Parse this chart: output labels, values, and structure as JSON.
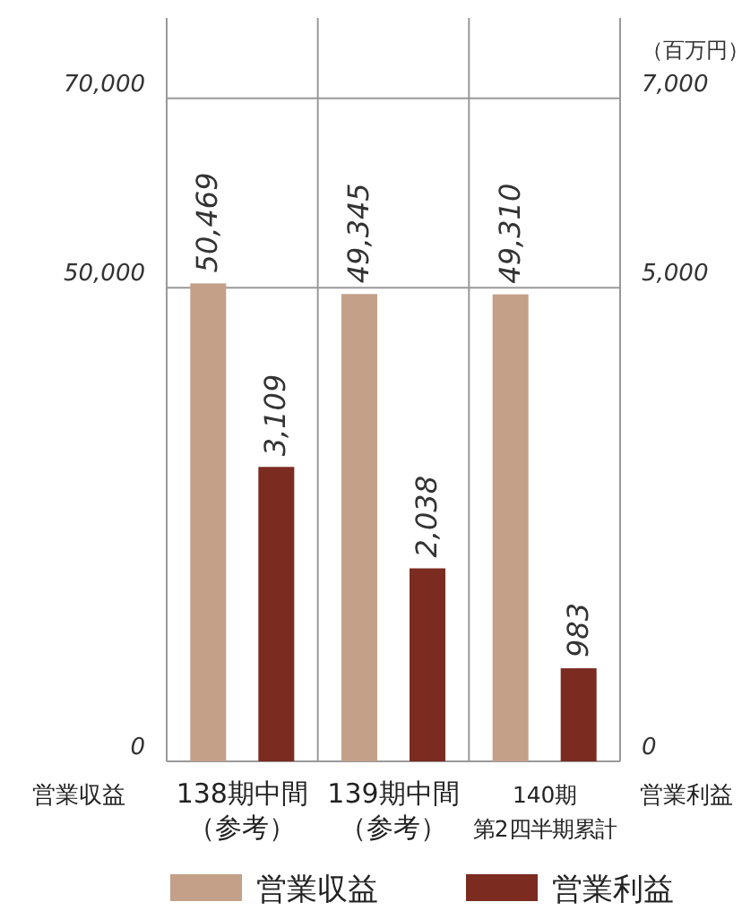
{
  "chart_data": {
    "type": "bar",
    "categories": [
      "138期中間（参考）",
      "139期中間（参考）",
      "140期第2四半期累計"
    ],
    "series": [
      {
        "name": "営業収益",
        "color": "#c4a089",
        "values": [
          50469,
          49345,
          49310
        ],
        "value_labels": [
          "50,469",
          "49,345",
          "49,310"
        ]
      },
      {
        "name": "営業利益",
        "color": "#7b2b20",
        "values": [
          3109,
          2038,
          983
        ],
        "value_labels": [
          "3,109",
          "2,038",
          "983"
        ],
        "axis": "y2"
      }
    ],
    "ylim": [
      0,
      78500
    ],
    "yticks": [
      0,
      {
        "value": 50000,
        "label": "50,000"
      },
      {
        "value": 70000,
        "label": "70,000"
      }
    ],
    "y2lim": [
      0,
      7850
    ],
    "y2ticks": [
      0,
      {
        "value": 5000,
        "label": "5,000"
      },
      {
        "value": 7000,
        "label": "7,000"
      }
    ],
    "ylabel": "営業収益",
    "y2label": "営業利益",
    "annotations": [
      "（百万円）"
    ],
    "grid": true,
    "legend": "bottom"
  }
}
